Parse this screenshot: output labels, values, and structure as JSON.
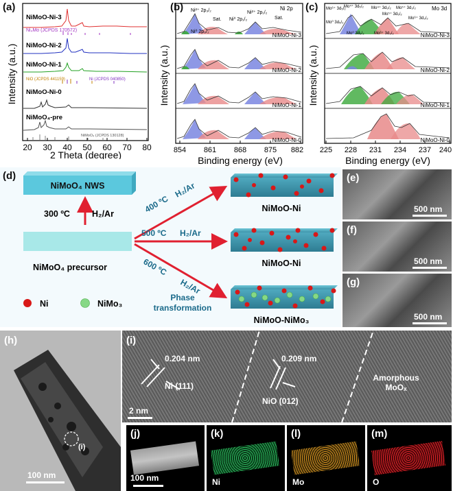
{
  "panel_labels": {
    "a": "(a)",
    "b": "(b)",
    "c": "(c)",
    "d": "(d)",
    "e": "(e)",
    "f": "(f)",
    "g": "(g)",
    "h": "(h)",
    "i": "(i)",
    "j": "(j)",
    "k": "(k)",
    "l": "(l)",
    "m": "(m)"
  },
  "panel_a": {
    "ylabel": "Intensity (a.u.)",
    "xlabel": "2 Theta (degree)",
    "xticks": [
      "20",
      "30",
      "40",
      "50",
      "60",
      "70",
      "80"
    ],
    "traces": [
      {
        "label": "NiMoO-Ni-3",
        "color": "#e03030"
      },
      {
        "label": "NiMoO-Ni-2",
        "color": "#2030c0"
      },
      {
        "label": "NiMoO-Ni-1",
        "color": "#20a020"
      },
      {
        "label": "NiMoO-Ni-0",
        "color": "#303030"
      },
      {
        "label": "NiMoO4-pre",
        "color": "#505050"
      }
    ],
    "refs": {
      "ni4mo": "Ni₄Mo (JCPDS 170572)",
      "nio": "NiO (JCPDS 441159)",
      "ni": "Ni (JCPDS 040850)",
      "nimoo4": "NiMoO₄ (JCPDS 130128)"
    },
    "label_pre": "NiMoO₄-pre"
  },
  "panel_b": {
    "ylabel": "Intensity (a.u.)",
    "xlabel": "Binding energy (eV)",
    "xticks": [
      "854",
      "861",
      "868",
      "875",
      "882"
    ],
    "title": "Ni 2p",
    "samples": [
      "NiMoO-Ni-3",
      "NiMoO-Ni-2",
      "NiMoO-Ni-1",
      "NiMoO-Ni-0"
    ],
    "annotations": [
      "Ni²⁺ 2p₃/₂",
      "Sat.",
      "Ni⁰ 2p₃/₂",
      "Ni⁰ 2p₁/₂",
      "Ni²⁺ 2p₁/₂",
      "Sat."
    ]
  },
  "panel_c": {
    "ylabel": "Intensity (a.u.)",
    "xlabel": "Binding energy (eV)",
    "xticks": [
      "225",
      "228",
      "231",
      "234",
      "237",
      "240"
    ],
    "title": "Mo 3d",
    "samples": [
      "NiMoO-Ni-3",
      "NiMoO-Ni-2",
      "NiMoO-Ni-1",
      "NiMoO-Ni-0"
    ],
    "annotations": [
      "Mo⁶⁺ 3d₅/₂",
      "Mo⁰ 3d₅/₂",
      "Mo⁴⁺ 3d₅/₂",
      "Mo⁰ 3d₃/₂",
      "Mo⁶⁺ 3d₃/₂",
      "Mo⁴⁺ 3d₃/₂",
      "Mo⁵⁺ 3d₅/₂",
      "Mo⁵⁺ 3d₃/₂",
      "Mo⁶⁺ 3d₃/₂"
    ]
  },
  "panel_d": {
    "nws": "NiMoO₄ NWS",
    "t300": "300 ºC",
    "gas": "H₂/Ar",
    "precursor": "NiMoO₄ precursor",
    "t400": "400 ºC",
    "t500": "500 ºC",
    "t600": "600 ºC",
    "prod1": "NiMoO-Ni",
    "prod2": "NiMoO-Ni",
    "prod3": "NiMoO-NiMo₃",
    "phase": "Phase transformation",
    "legend_ni": "Ni",
    "legend_nimo3": "NiMo₃"
  },
  "sem_scale": "500 nm",
  "tem_scale": "100 nm",
  "hr": {
    "d1": "0.204 nm",
    "p1": "Ni (111)",
    "d2": "0.209 nm",
    "p2": "NiO (012)",
    "amorph": "Amorphous MoOₓ",
    "scale": "2 nm",
    "marker": "(i)"
  },
  "maps": {
    "scale": "100 nm",
    "ni": "Ni",
    "mo": "Mo",
    "o": "O"
  }
}
